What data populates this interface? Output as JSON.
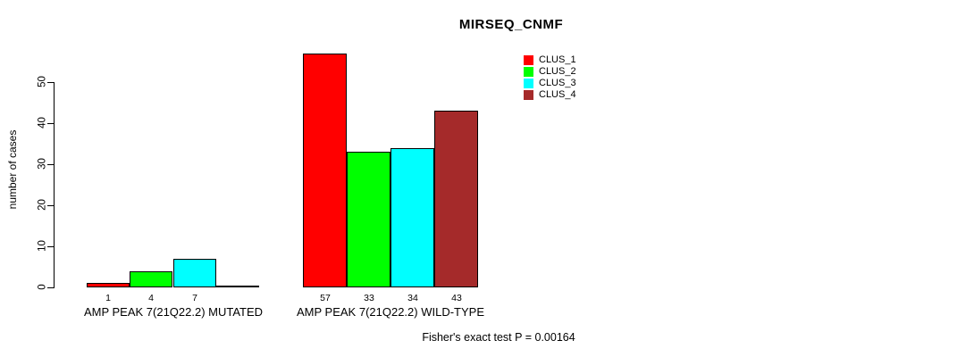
{
  "chart_data": {
    "type": "bar",
    "title": "MIRSEQ_CNMF",
    "ylabel": "number of cases",
    "xlabel": "",
    "ylim": [
      0,
      50
    ],
    "yticks": [
      0,
      10,
      20,
      30,
      40,
      50
    ],
    "grid": false,
    "legend_position": "top-right",
    "categories": [
      "AMP PEAK 7(21Q22.2) MUTATED",
      "AMP PEAK 7(21Q22.2) WILD-TYPE"
    ],
    "series": [
      {
        "name": "CLUS_1",
        "color": "#ff0000",
        "values": [
          1,
          57
        ]
      },
      {
        "name": "CLUS_2",
        "color": "#00ff00",
        "values": [
          4,
          33
        ]
      },
      {
        "name": "CLUS_3",
        "color": "#00ffff",
        "values": [
          7,
          34
        ]
      },
      {
        "name": "CLUS_4",
        "color": "#a52a2a",
        "values": [
          0,
          43
        ]
      }
    ],
    "bar_value_labels": [
      [
        "1",
        "4",
        "7",
        ""
      ],
      [
        "57",
        "33",
        "34",
        "43"
      ]
    ],
    "annotation": "Fisher's exact test P = 0.00164"
  }
}
